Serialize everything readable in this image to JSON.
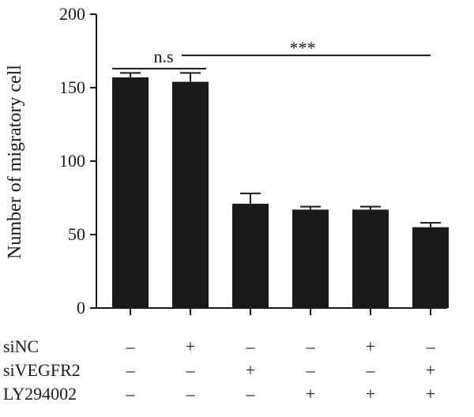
{
  "chart_data": {
    "type": "bar",
    "ylabel": "Number of migratory cell",
    "ylim": [
      0,
      200
    ],
    "yticks": [
      0,
      50,
      100,
      150,
      200
    ],
    "grid": false,
    "bar_color": "#1a1a1a",
    "values": [
      157,
      154,
      71,
      67,
      67,
      55
    ],
    "errors": [
      3,
      6,
      7,
      2,
      2,
      3
    ],
    "conditions": [
      {
        "name": "siNC",
        "marks": [
          "–",
          "+",
          "–",
          "–",
          "+",
          "–"
        ]
      },
      {
        "name": "siVEGFR2",
        "marks": [
          "–",
          "–",
          "+",
          "–",
          "–",
          "+"
        ]
      },
      {
        "name": "LY294002",
        "marks": [
          "–",
          "–",
          "–",
          "+",
          "+",
          "+"
        ]
      }
    ],
    "annotations": [
      {
        "text": "n.s",
        "from_bar": 0,
        "to_bar": 1,
        "y": 163
      },
      {
        "text": "***",
        "from_bar": 0,
        "to_bar": 5,
        "y": 172
      }
    ]
  }
}
